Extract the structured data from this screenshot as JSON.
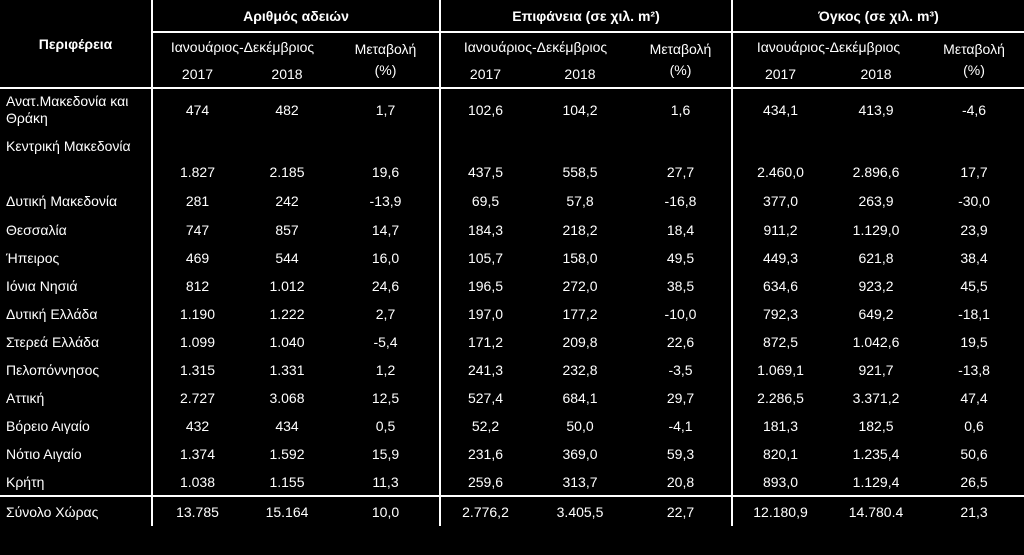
{
  "headers": {
    "region": "Περιφέρεια",
    "groups": [
      {
        "title": "Αριθμός αδειών",
        "period": "Ιανουάριος-Δεκέμβριος",
        "change": "Μεταβολή\n(%)"
      },
      {
        "title": "Επιφάνεια (σε χιλ. m²)",
        "period": "Ιανουάριος-Δεκέμβριος",
        "change": "Μεταβολή\n(%)"
      },
      {
        "title": "Όγκος (σε χιλ. m³)",
        "period": "Ιανουάριος-Δεκέμβριος",
        "change": "Μεταβολή\n(%)"
      }
    ],
    "year1": "2017",
    "year2": "2018"
  },
  "rows": [
    {
      "name": "Ανατ.Μακεδονία και Θράκη",
      "v": [
        "474",
        "482",
        "1,7",
        "102,6",
        "104,2",
        "1,6",
        "434,1",
        "413,9",
        "-4,6"
      ]
    },
    {
      "name": "Κεντρική Μακεδονία",
      "v": [
        "1.827",
        "2.185",
        "19,6",
        "437,5",
        "558,5",
        "27,7",
        "2.460,0",
        "2.896,6",
        "17,7"
      ]
    },
    {
      "name": "Δυτική Μακεδονία",
      "v": [
        "281",
        "242",
        "-13,9",
        "69,5",
        "57,8",
        "-16,8",
        "377,0",
        "263,9",
        "-30,0"
      ]
    },
    {
      "name": "Θεσσαλία",
      "v": [
        "747",
        "857",
        "14,7",
        "184,3",
        "218,2",
        "18,4",
        "911,2",
        "1.129,0",
        "23,9"
      ]
    },
    {
      "name": "Ήπειρος",
      "v": [
        "469",
        "544",
        "16,0",
        "105,7",
        "158,0",
        "49,5",
        "449,3",
        "621,8",
        "38,4"
      ]
    },
    {
      "name": "Ιόνια Νησιά",
      "v": [
        "812",
        "1.012",
        "24,6",
        "196,5",
        "272,0",
        "38,5",
        "634,6",
        "923,2",
        "45,5"
      ]
    },
    {
      "name": "Δυτική Ελλάδα",
      "v": [
        "1.190",
        "1.222",
        "2,7",
        "197,0",
        "177,2",
        "-10,0",
        "792,3",
        "649,2",
        "-18,1"
      ]
    },
    {
      "name": "Στερεά Ελλάδα",
      "v": [
        "1.099",
        "1.040",
        "-5,4",
        "171,2",
        "209,8",
        "22,6",
        "872,5",
        "1.042,6",
        "19,5"
      ]
    },
    {
      "name": "Πελοπόννησος",
      "v": [
        "1.315",
        "1.331",
        "1,2",
        "241,3",
        "232,8",
        "-3,5",
        "1.069,1",
        "921,7",
        "-13,8"
      ]
    },
    {
      "name": "Αττική",
      "v": [
        "2.727",
        "3.068",
        "12,5",
        "527,4",
        "684,1",
        "29,7",
        "2.286,5",
        "3.371,2",
        "47,4"
      ]
    },
    {
      "name": "Βόρειο Αιγαίο",
      "v": [
        "432",
        "434",
        "0,5",
        "52,2",
        "50,0",
        "-4,1",
        "181,3",
        "182,5",
        "0,6"
      ]
    },
    {
      "name": "Νότιο Αιγαίο",
      "v": [
        "1.374",
        "1.592",
        "15,9",
        "231,6",
        "369,0",
        "59,3",
        "820,1",
        "1.235,4",
        "50,6"
      ]
    },
    {
      "name": "Κρήτη",
      "v": [
        "1.038",
        "1.155",
        "11,3",
        "259,6",
        "313,7",
        "20,8",
        "893,0",
        "1.129,4",
        "26,5"
      ]
    }
  ],
  "total": {
    "name": "Σύνολο Χώρας",
    "v": [
      "13.785",
      "15.164",
      "10,0",
      "2.776,2",
      "3.405,5",
      "22,7",
      "12.180,9",
      "14.780.4",
      "21,3"
    ]
  }
}
